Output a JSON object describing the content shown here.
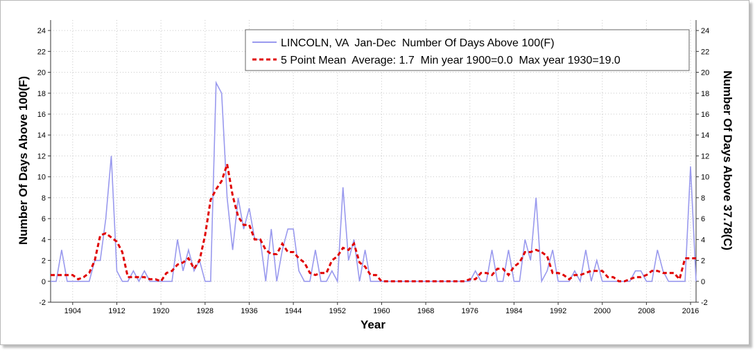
{
  "chart_data": {
    "type": "line",
    "xlabel": "Year",
    "ylabel_left": "Number Of Days Above 100(F)",
    "ylabel_right": "Number Of Days Above 37.78(C)",
    "xlim": [
      1900,
      2017
    ],
    "ylim": [
      -2,
      25
    ],
    "x_ticks": [
      1904,
      1912,
      1920,
      1928,
      1936,
      1944,
      1952,
      1960,
      1968,
      1976,
      1984,
      1992,
      2000,
      2008,
      2016
    ],
    "y_ticks": [
      -2,
      0,
      2,
      4,
      6,
      8,
      10,
      12,
      14,
      16,
      18,
      20,
      22,
      24
    ],
    "grid": true,
    "legend_position": "top-right",
    "legend": {
      "series1": "LINCOLN, VA  Jan-Dec  Number Of Days Above 100(F)",
      "series2": "5 Point Mean  Average: 1.7  Min year 1900=0.0  Max year 1930=19.0"
    },
    "colors": {
      "series1": "#9999ee",
      "series2": "#e00000",
      "axis": "#333333",
      "grid": "#c8c8c8"
    },
    "years": [
      1900,
      1901,
      1902,
      1903,
      1904,
      1905,
      1906,
      1907,
      1908,
      1909,
      1910,
      1911,
      1912,
      1913,
      1914,
      1915,
      1916,
      1917,
      1918,
      1919,
      1920,
      1921,
      1922,
      1923,
      1924,
      1925,
      1926,
      1927,
      1928,
      1929,
      1930,
      1931,
      1932,
      1933,
      1934,
      1935,
      1936,
      1937,
      1938,
      1939,
      1940,
      1941,
      1942,
      1943,
      1944,
      1945,
      1946,
      1947,
      1948,
      1949,
      1950,
      1951,
      1952,
      1953,
      1954,
      1955,
      1956,
      1957,
      1958,
      1959,
      1960,
      1961,
      1962,
      1963,
      1964,
      1965,
      1966,
      1967,
      1968,
      1969,
      1970,
      1971,
      1972,
      1973,
      1974,
      1975,
      1976,
      1977,
      1978,
      1979,
      1980,
      1981,
      1982,
      1983,
      1984,
      1985,
      1986,
      1987,
      1988,
      1989,
      1990,
      1991,
      1992,
      1993,
      1994,
      1995,
      1996,
      1997,
      1998,
      1999,
      2000,
      2001,
      2002,
      2003,
      2004,
      2005,
      2006,
      2007,
      2008,
      2009,
      2010,
      2011,
      2012,
      2013,
      2014,
      2015,
      2016,
      2017
    ],
    "series": [
      {
        "name": "LINCOLN, VA  Jan-Dec  Number Of Days Above 100(F)",
        "values": [
          0,
          0,
          3,
          0,
          0,
          0,
          0,
          0,
          2,
          2,
          6,
          12,
          1,
          0,
          0,
          1,
          0,
          1,
          0,
          0,
          0,
          0,
          0,
          4,
          1,
          3,
          1,
          2,
          0,
          0,
          19,
          18,
          8,
          3,
          8,
          5,
          7,
          4,
          4,
          0,
          5,
          0,
          3,
          5,
          5,
          1,
          0,
          0,
          3,
          0,
          0,
          1,
          0,
          9,
          2,
          4,
          0,
          3,
          0,
          0,
          0,
          0,
          0,
          0,
          0,
          0,
          0,
          0,
          0,
          0,
          0,
          0,
          0,
          0,
          0,
          0,
          0,
          1,
          0,
          0,
          3,
          0,
          0,
          3,
          0,
          0,
          4,
          2,
          8,
          0,
          1,
          3,
          0,
          0,
          0,
          1,
          0,
          3,
          0,
          2,
          0,
          0,
          0,
          0,
          0,
          0,
          1,
          1,
          0,
          0,
          3,
          1,
          0,
          0,
          0,
          0,
          11,
          0
        ]
      },
      {
        "name": "5 Point Mean  Average: 1.7  Min year 1900=0.0  Max year 1930=19.0",
        "values": [
          0.6,
          0.6,
          0.6,
          0.6,
          0.6,
          0.2,
          0.4,
          0.8,
          2.0,
          4.4,
          4.6,
          4.2,
          3.8,
          2.8,
          0.4,
          0.4,
          0.4,
          0.4,
          0.2,
          0.2,
          0.0,
          0.8,
          1.0,
          1.6,
          1.8,
          2.2,
          1.2,
          2.0,
          4.4,
          7.8,
          8.8,
          9.6,
          11.2,
          8.2,
          6.2,
          5.4,
          5.4,
          4.0,
          4.0,
          3.0,
          2.6,
          2.6,
          3.6,
          2.8,
          2.8,
          2.2,
          1.8,
          0.8,
          0.6,
          0.8,
          0.8,
          2.0,
          2.4,
          3.2,
          3.0,
          3.6,
          1.8,
          1.4,
          0.6,
          0.6,
          0.0,
          0.0,
          0.0,
          0.0,
          0.0,
          0.0,
          0.0,
          0.0,
          0.0,
          0.0,
          0.0,
          0.0,
          0.0,
          0.0,
          0.0,
          0.0,
          0.2,
          0.2,
          0.8,
          0.8,
          0.6,
          1.2,
          1.2,
          0.6,
          1.4,
          1.8,
          2.8,
          2.8,
          3.0,
          2.8,
          2.4,
          0.8,
          0.8,
          0.6,
          0.2,
          0.6,
          0.6,
          0.8,
          1.0,
          1.0,
          1.0,
          0.4,
          0.4,
          0.0,
          0.0,
          0.2,
          0.4,
          0.4,
          0.6,
          1.0,
          1.0,
          0.8,
          0.8,
          0.8,
          0.2,
          2.2,
          2.2,
          2.2
        ]
      }
    ]
  }
}
